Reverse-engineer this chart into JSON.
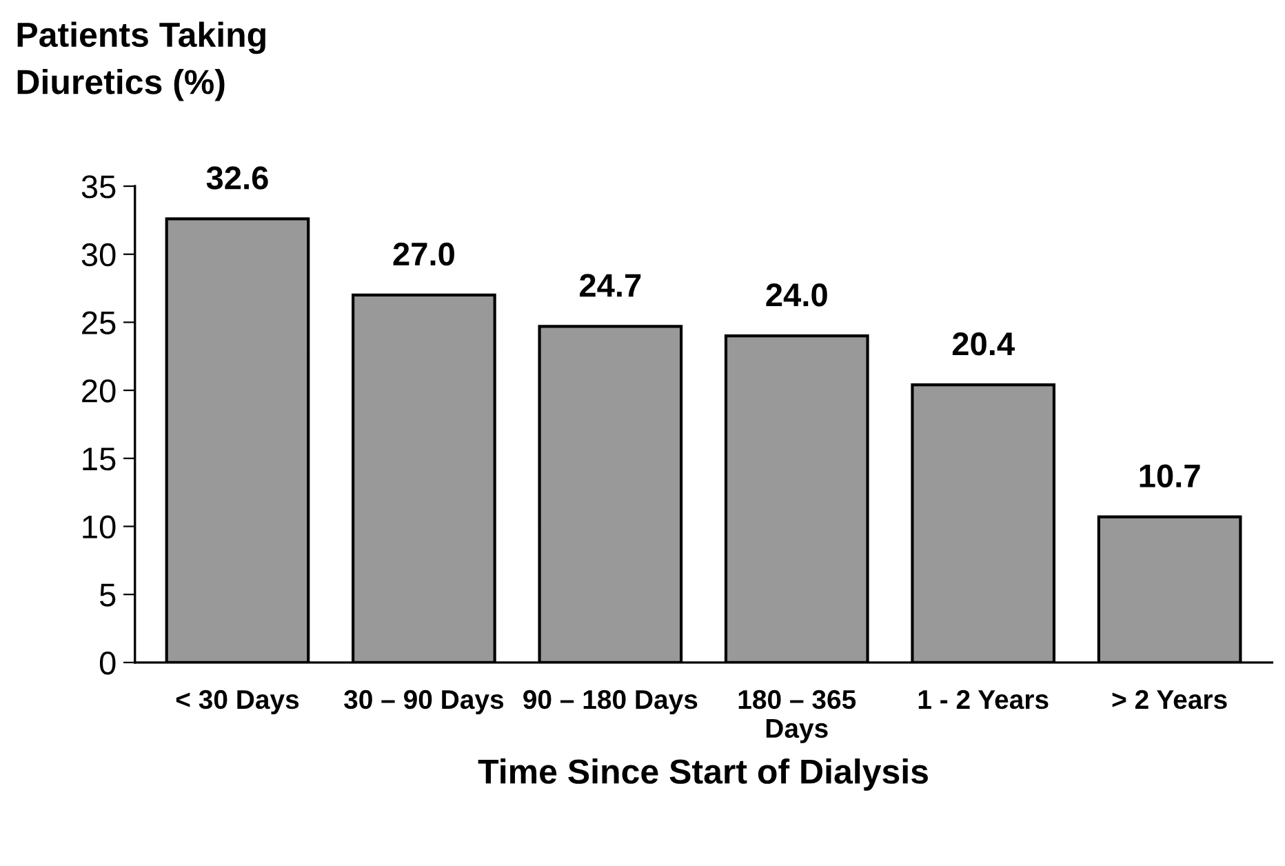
{
  "chart_data": {
    "type": "bar",
    "ylabel": "Patients Taking\nDiuretics (%)",
    "xlabel": "Time Since Start of Dialysis",
    "categories": [
      "< 30 Days",
      "30 – 90 Days",
      "90 – 180 Days",
      "180 – 365\nDays",
      "1 - 2 Years",
      "> 2 Years"
    ],
    "values": [
      32.6,
      27.0,
      24.7,
      24.0,
      20.4,
      10.7
    ],
    "value_labels": [
      "32.6",
      "27.0",
      "24.7",
      "24.0",
      "20.4",
      "10.7"
    ],
    "color": "#999999",
    "ylim": [
      0,
      35
    ],
    "yticks": [
      0,
      5,
      10,
      15,
      20,
      25,
      30,
      35
    ],
    "grid": false,
    "legend": false
  }
}
